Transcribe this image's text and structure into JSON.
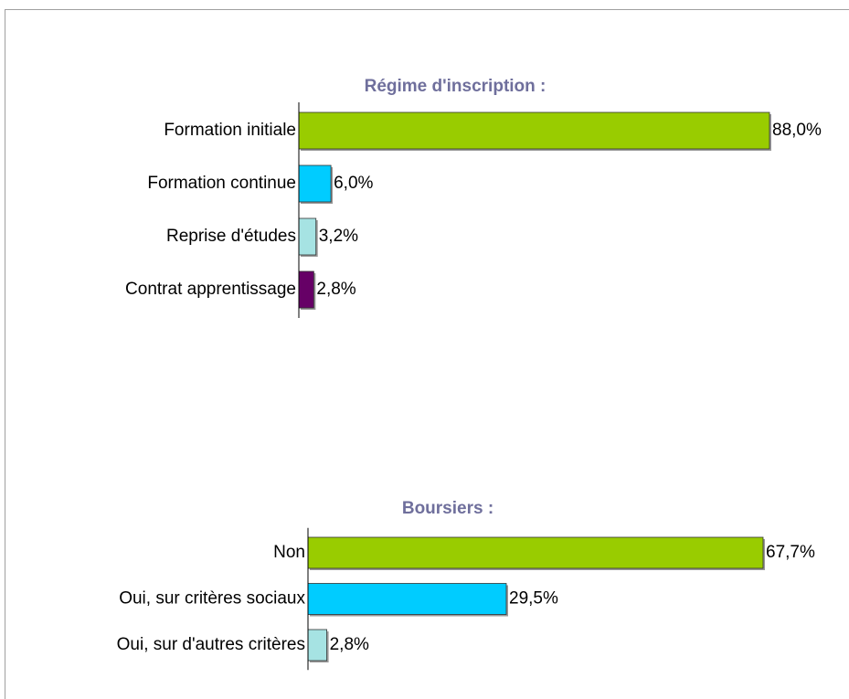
{
  "chart_data": [
    {
      "type": "bar",
      "title": "Régime d'inscription :",
      "categories": [
        "Formation initiale",
        "Formation continue",
        "Reprise d'études",
        "Contrat apprentissage"
      ],
      "values": [
        88.0,
        6.0,
        3.2,
        2.8
      ],
      "value_labels": [
        "88,0%",
        "6,0%",
        "3,2%",
        "2,8%"
      ],
      "colors": [
        "#99cc00",
        "#00ccff",
        "#a6e3e3",
        "#660066"
      ]
    },
    {
      "type": "bar",
      "title": "Boursiers :",
      "categories": [
        "Non",
        "Oui, sur critères sociaux",
        "Oui, sur d'autres critères"
      ],
      "values": [
        67.7,
        29.5,
        2.8
      ],
      "value_labels": [
        "67,7%",
        "29,5%",
        "2,8%"
      ],
      "colors": [
        "#99cc00",
        "#00ccff",
        "#a6e3e3"
      ]
    }
  ]
}
